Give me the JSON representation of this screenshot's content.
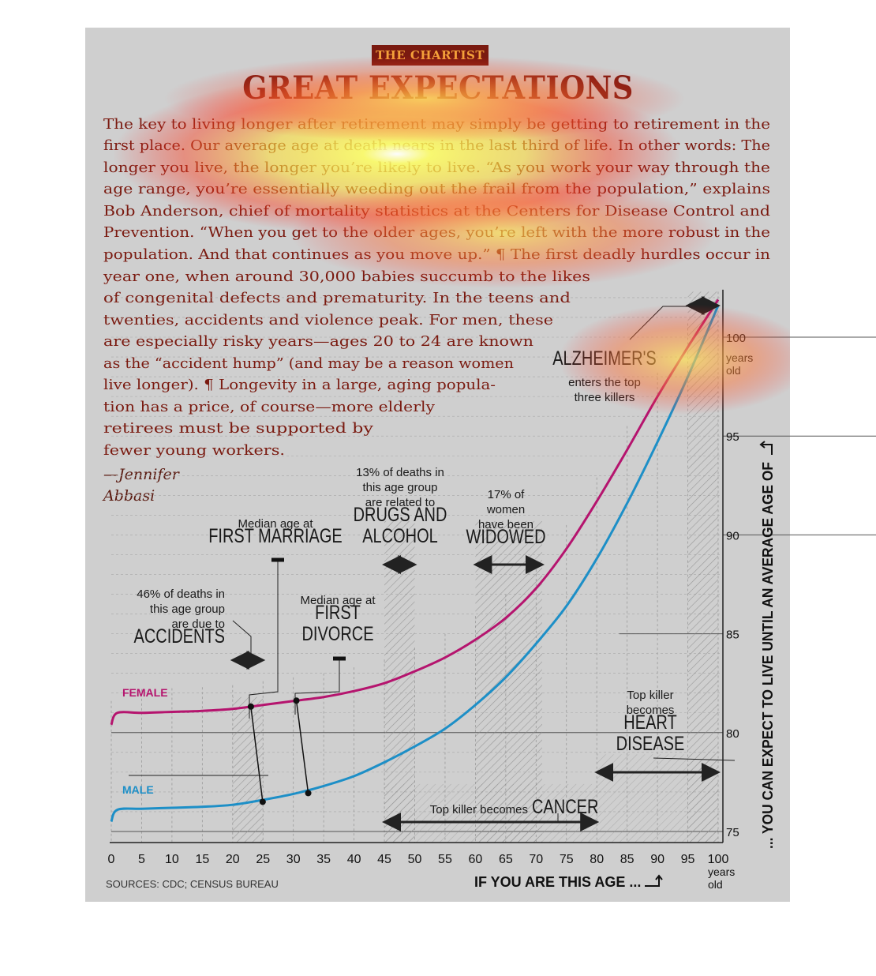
{
  "header": {
    "kicker": "THE CHARTIST",
    "title": "GREAT EXPECTATIONS"
  },
  "article": {
    "lines": [
      "The key to living longer after retirement may simply be getting to retirement in the",
      "first place. Our average age at death nears in the last third of life. In other words: The",
      "longer you live, the longer you’re likely to live. “As you work your way through the",
      "age range, you’re essentially weeding out the frail from the population,” explains",
      "Bob Anderson, chief of mortality statistics at the Centers for Disease Control and",
      "Prevention. “When you get to the older ages, you’re left with the more robust in the",
      "population. And that continues as you move up.” ¶ The first deadly hurdles occur in",
      "year one, when around 30,000 babies succumb to the likes",
      "of congenital defects and prematurity. In the teens and",
      "twenties, accidents and violence peak. For men, these",
      "are especially risky years—ages 20 to 24 are known",
      "as the “accident hump” (and may be a reason women",
      "live longer). ¶ Longevity in a large, aging popula-",
      "tion has a price, of course—more elderly",
      "retirees must be supported by",
      "fewer young workers."
    ],
    "byline_1": "—Jennifer",
    "byline_2": "Abbasi"
  },
  "chart_data": {
    "type": "line",
    "title": "",
    "xlabel": "IF YOU ARE THIS AGE ...",
    "ylabel": "... YOU CAN EXPECT TO LIVE UNTIL AN AVERAGE AGE OF",
    "xlim": [
      0,
      100
    ],
    "ylim": [
      75,
      102
    ],
    "x_ticks": [
      0,
      5,
      10,
      15,
      20,
      25,
      30,
      35,
      40,
      45,
      50,
      55,
      60,
      65,
      70,
      75,
      80,
      85,
      90,
      95,
      100
    ],
    "x_end_unit": "years old",
    "y_ticks": [
      75,
      80,
      85,
      90,
      95,
      100
    ],
    "y_top_unit": "years old",
    "grid": true,
    "series": [
      {
        "name": "FEMALE",
        "color": "#b5146e",
        "x": [
          0,
          1,
          5,
          10,
          15,
          20,
          25,
          30,
          35,
          40,
          45,
          50,
          55,
          60,
          65,
          70,
          75,
          80,
          85,
          90,
          95,
          100
        ],
        "y": [
          80.4,
          81.0,
          81.0,
          81.05,
          81.1,
          81.2,
          81.4,
          81.6,
          81.8,
          82.1,
          82.5,
          83.1,
          83.8,
          84.7,
          85.8,
          87.3,
          89.3,
          91.7,
          94.3,
          97.0,
          99.5,
          101.9
        ]
      },
      {
        "name": "MALE",
        "color": "#1d8fc7",
        "x": [
          0,
          1,
          5,
          10,
          15,
          20,
          25,
          30,
          35,
          40,
          45,
          50,
          55,
          60,
          65,
          70,
          75,
          80,
          85,
          90,
          95,
          100
        ],
        "y": [
          75.5,
          76.1,
          76.15,
          76.2,
          76.25,
          76.35,
          76.6,
          76.9,
          77.3,
          77.8,
          78.5,
          79.3,
          80.2,
          81.4,
          82.8,
          84.5,
          86.4,
          88.8,
          91.6,
          94.7,
          98.0,
          101.6
        ]
      }
    ],
    "annotations": {
      "accidents": [
        "46% of deaths in",
        "this age group",
        "are due to",
        "ACCIDENTS"
      ],
      "first_marriage": [
        "Median age at",
        "FIRST MARRIAGE"
      ],
      "first_divorce": [
        "Median age at",
        "FIRST",
        "DIVORCE"
      ],
      "drugs": [
        "13% of deaths in",
        "this age group",
        "are related to",
        "DRUGS AND",
        "ALCOHOL"
      ],
      "widowed": [
        "17% of",
        "women",
        "have been",
        "WIDOWED"
      ],
      "alzheimers": [
        "ALZHEIMER'S",
        "enters the top",
        "three killers"
      ],
      "heart": [
        "Top killer",
        "becomes",
        "HEART",
        "DISEASE"
      ],
      "cancer_small": "Top killer becomes",
      "cancer_big": "CANCER"
    },
    "markers": [
      {
        "label": "first_marriage",
        "x": 23
      },
      {
        "label": "first_divorce",
        "x": 30.5
      }
    ],
    "ranges": [
      {
        "label": "accidents",
        "x": [
          20,
          25
        ]
      },
      {
        "label": "drugs",
        "x": [
          45,
          50
        ]
      },
      {
        "label": "widowed",
        "x": [
          60,
          71
        ]
      },
      {
        "label": "cancer",
        "x": [
          45,
          80
        ]
      },
      {
        "label": "heart",
        "x": [
          80,
          100
        ]
      },
      {
        "label": "alzheimers",
        "x": [
          95,
          100
        ]
      }
    ],
    "sources": "SOURCES: CDC; CENSUS BUREAU"
  },
  "colors": {
    "panel": "#cfcfcf",
    "title": "#7a1a10",
    "female": "#b5146e",
    "male": "#1d8fc7"
  }
}
